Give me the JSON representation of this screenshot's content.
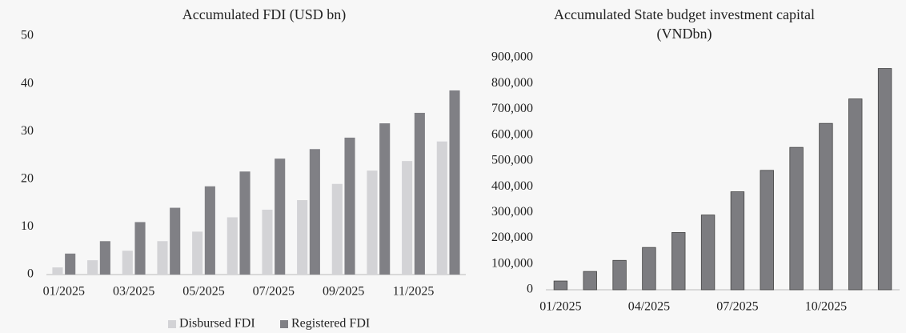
{
  "chart_data": [
    {
      "type": "bar",
      "title": "Accumulated FDI (USD bn)",
      "categories": [
        "01/2025",
        null,
        "03/2025",
        null,
        "05/2025",
        null,
        "07/2025",
        null,
        "09/2025",
        null,
        "11/2025",
        null
      ],
      "series": [
        {
          "name": "Disbursed FDI",
          "color": "#d3d3d6",
          "values": [
            1.5,
            3,
            5,
            7,
            9,
            12,
            13.6,
            15.6,
            19,
            21.8,
            23.8,
            27.9
          ]
        },
        {
          "name": "Registered FDI",
          "color": "#808085",
          "values": [
            4.4,
            7,
            11,
            14,
            18.5,
            21.6,
            24.3,
            26.3,
            28.7,
            31.7,
            33.9,
            38.6
          ]
        }
      ],
      "ylim": [
        0,
        50
      ],
      "yticks": [
        0,
        10,
        20,
        30,
        40,
        50
      ],
      "grid": false,
      "legend": "bottom"
    },
    {
      "type": "bar",
      "title": "Accumulated State budget investment capital (VNDbn)",
      "categories": [
        "01/2025",
        null,
        null,
        "04/2025",
        null,
        null,
        "07/2025",
        null,
        null,
        "10/2025",
        null,
        null
      ],
      "values": [
        34000,
        71000,
        114000,
        164000,
        222000,
        290000,
        380000,
        463000,
        552000,
        645000,
        740000,
        858000
      ],
      "color": "#7c7c80",
      "ylim": [
        0,
        900000
      ],
      "yticks": [
        0,
        {
          "value": 100000,
          "label": "100,000"
        },
        {
          "value": 200000,
          "label": "200,000"
        },
        {
          "value": 300000,
          "label": "300,000"
        },
        {
          "value": 400000,
          "label": "400,000"
        },
        {
          "value": 500000,
          "label": "500,000"
        },
        {
          "value": 600000,
          "label": "600,000"
        },
        {
          "value": 700000,
          "label": "700,000"
        },
        {
          "value": 800000,
          "label": "800,000"
        },
        {
          "value": 900000,
          "label": "900,000"
        }
      ],
      "grid": false
    }
  ]
}
